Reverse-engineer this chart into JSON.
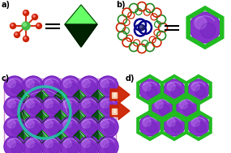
{
  "bg_color": "#ffffff",
  "panel_a_label": "a)",
  "panel_b_label": "b)",
  "panel_c_label": "c)",
  "panel_d_label": "d)",
  "label_fontsize": 7,
  "green_bright": "#33cc33",
  "green_dark": "#004400",
  "green_mid": "#228822",
  "green_edge": "#22bb22",
  "red_color": "#cc2200",
  "purple_color": "#8833cc",
  "purple_light": "#bb77ee",
  "purple_dark": "#5511aa",
  "navy": "#000077",
  "pink_bg": "#f5eeff",
  "pink_border": "#cc88cc",
  "white_bg": "#ffffff"
}
